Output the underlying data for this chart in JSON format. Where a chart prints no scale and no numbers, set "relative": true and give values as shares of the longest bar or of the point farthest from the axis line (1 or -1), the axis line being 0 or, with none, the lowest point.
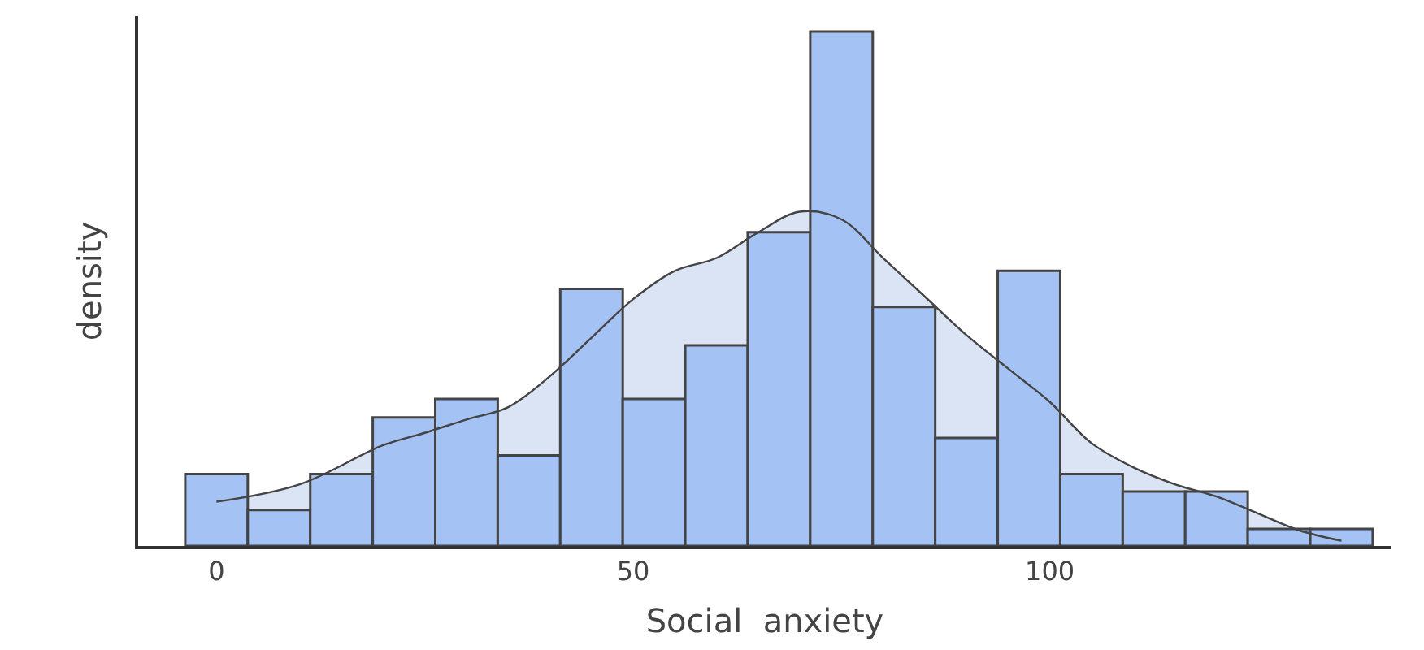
{
  "chart_data": {
    "type": "histogram",
    "xlabel": "Social  anxiety",
    "ylabel": "density",
    "relative": true,
    "bins": [
      -3.75,
      3.75,
      11.25,
      18.75,
      26.25,
      33.75,
      41.25,
      48.75,
      56.25,
      63.75,
      71.25,
      78.75,
      86.25,
      93.75,
      101.25,
      108.75,
      116.25,
      123.75,
      131.25,
      138.75
    ],
    "values": [
      0.14,
      0.07,
      0.14,
      0.25,
      0.286,
      0.176,
      0.5,
      0.286,
      0.39,
      0.61,
      1,
      0.465,
      0.21,
      0.535,
      0.14,
      0.106,
      0.106,
      0.033,
      0.033
    ],
    "color": "#a4c2f4",
    "series": [
      {
        "type": "area",
        "color": "#dae4f5",
        "x": [
          0,
          10,
          20,
          25,
          30,
          35,
          40,
          45,
          50,
          55,
          60,
          65,
          70,
          75,
          80,
          85,
          90,
          95,
          100,
          105,
          110,
          115,
          120,
          125,
          130,
          135
        ],
        "values": [
          0.086,
          0.12,
          0.196,
          0.22,
          0.246,
          0.27,
          0.33,
          0.405,
          0.48,
          0.535,
          0.56,
          0.61,
          0.65,
          0.635,
          0.56,
          0.485,
          0.41,
          0.345,
          0.28,
          0.2,
          0.153,
          0.12,
          0.096,
          0.063,
          0.03,
          0.01
        ]
      }
    ],
    "xlim": [
      -9.4,
      141
    ],
    "xticks": [
      0,
      50,
      100
    ],
    "legend": false
  }
}
